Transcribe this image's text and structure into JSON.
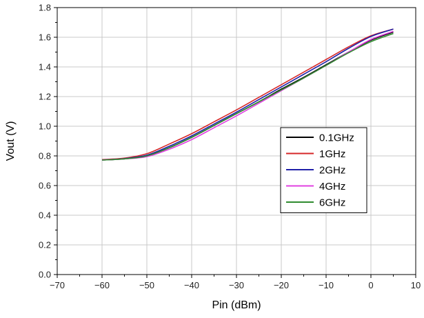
{
  "chart_data": {
    "type": "line",
    "xlabel": "Pin (dBm)",
    "ylabel": "Vout (V)",
    "xlim": [
      -70,
      10
    ],
    "ylim": [
      0.0,
      1.8
    ],
    "xticks": [
      "−70",
      "−60",
      "−50",
      "−40",
      "−30",
      "−20",
      "−10",
      "0",
      "10"
    ],
    "xtick_values": [
      -70,
      -60,
      -50,
      -40,
      -30,
      -20,
      -10,
      0,
      10
    ],
    "yticks": [
      "0.0",
      "0.2",
      "0.4",
      "0.6",
      "0.8",
      "1.0",
      "1.2",
      "1.4",
      "1.6",
      "1.8"
    ],
    "ytick_values": [
      0.0,
      0.2,
      0.4,
      0.6,
      0.8,
      1.0,
      1.2,
      1.4,
      1.6,
      1.8
    ],
    "grid": true,
    "legend_position": "center-right",
    "series": [
      {
        "name": "0.1GHz",
        "color": "#000000",
        "x": [
          -60,
          -55,
          -50,
          -45,
          -40,
          -35,
          -30,
          -25,
          -20,
          -15,
          -10,
          -5,
          0,
          5
        ],
        "y": [
          0.772,
          0.78,
          0.8,
          0.855,
          0.925,
          1.005,
          1.085,
          1.165,
          1.25,
          1.33,
          1.415,
          1.5,
          1.58,
          1.635
        ]
      },
      {
        "name": "1GHz",
        "color": "#d62728",
        "x": [
          -60,
          -55,
          -50,
          -45,
          -40,
          -35,
          -30,
          -25,
          -20,
          -15,
          -10,
          -5,
          0,
          5
        ],
        "y": [
          0.775,
          0.785,
          0.815,
          0.88,
          0.95,
          1.03,
          1.11,
          1.195,
          1.28,
          1.365,
          1.45,
          1.535,
          1.61,
          1.655
        ]
      },
      {
        "name": "2GHz",
        "color": "#1f1fa8",
        "x": [
          -60,
          -55,
          -50,
          -45,
          -40,
          -35,
          -30,
          -25,
          -20,
          -15,
          -10,
          -5,
          0,
          5
        ],
        "y": [
          0.773,
          0.782,
          0.805,
          0.865,
          0.935,
          1.015,
          1.095,
          1.18,
          1.265,
          1.35,
          1.435,
          1.525,
          1.605,
          1.655
        ]
      },
      {
        "name": "4GHz",
        "color": "#e040e0",
        "x": [
          -60,
          -55,
          -50,
          -45,
          -40,
          -35,
          -30,
          -25,
          -20,
          -15,
          -10,
          -5,
          0,
          5
        ],
        "y": [
          0.772,
          0.78,
          0.795,
          0.845,
          0.91,
          0.99,
          1.07,
          1.155,
          1.24,
          1.325,
          1.41,
          1.5,
          1.585,
          1.64
        ]
      },
      {
        "name": "6GHz",
        "color": "#2e8b2e",
        "x": [
          -60,
          -55,
          -50,
          -45,
          -40,
          -35,
          -30,
          -25,
          -20,
          -15,
          -10,
          -5,
          0,
          5
        ],
        "y": [
          0.772,
          0.78,
          0.8,
          0.855,
          0.925,
          1.005,
          1.085,
          1.165,
          1.245,
          1.325,
          1.41,
          1.495,
          1.57,
          1.625
        ]
      }
    ]
  }
}
